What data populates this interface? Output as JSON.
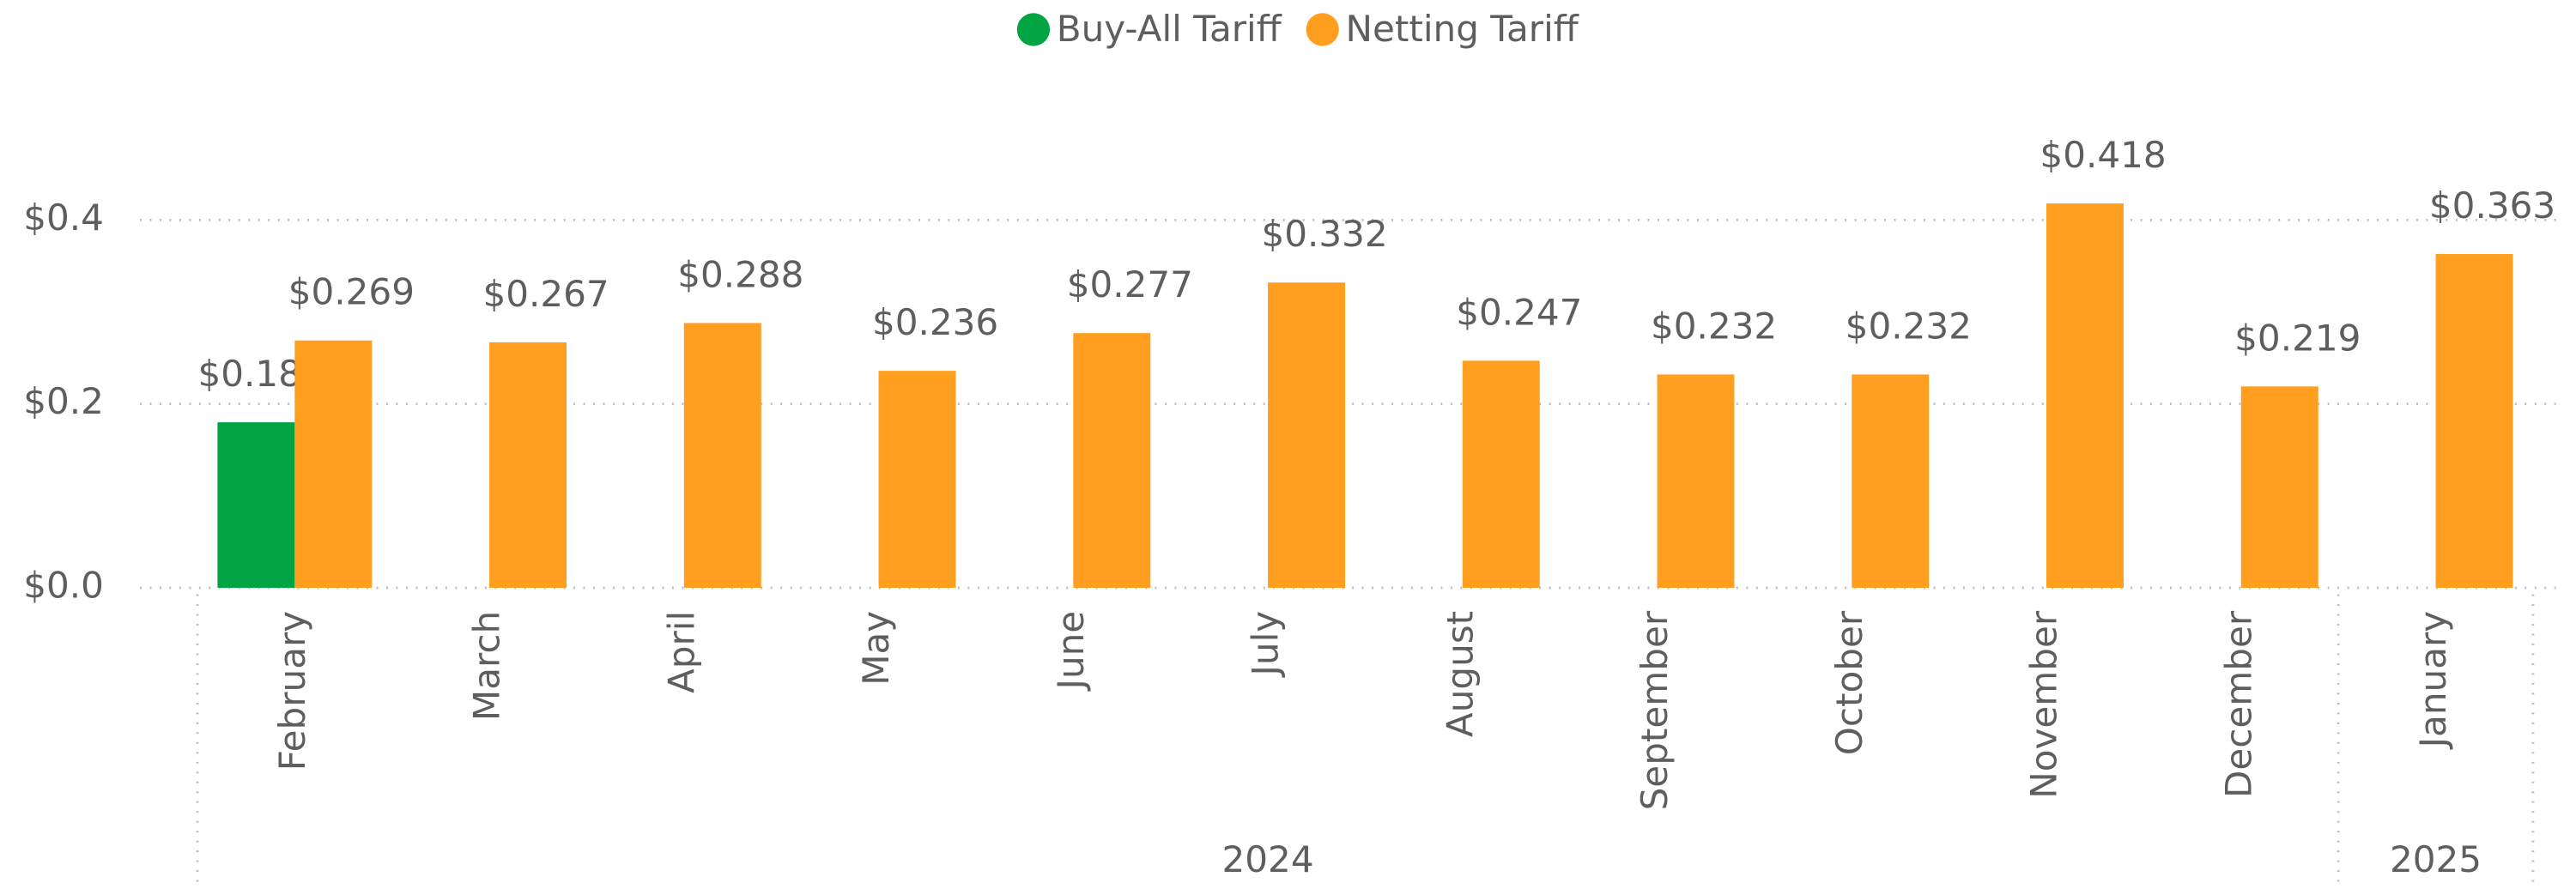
{
  "chart_data": {
    "type": "bar",
    "categories": [
      "February",
      "March",
      "April",
      "May",
      "June",
      "July",
      "August",
      "September",
      "October",
      "November",
      "December",
      "January"
    ],
    "category_groups": [
      {
        "label": "2024",
        "count": 11
      },
      {
        "label": "2025",
        "count": 1
      }
    ],
    "series": [
      {
        "name": "Buy-All Tariff",
        "color": "#00a443",
        "values": [
          0.18,
          null,
          null,
          null,
          null,
          null,
          null,
          null,
          null,
          null,
          null,
          null
        ],
        "value_labels": [
          "$0.180",
          null,
          null,
          null,
          null,
          null,
          null,
          null,
          null,
          null,
          null,
          null
        ]
      },
      {
        "name": "Netting Tariff",
        "color": "#ff9e1f",
        "values": [
          0.269,
          0.267,
          0.288,
          0.236,
          0.277,
          0.332,
          0.247,
          0.232,
          0.232,
          0.418,
          0.219,
          0.363
        ],
        "value_labels": [
          "$0.269",
          "$0.267",
          "$0.288",
          "$0.236",
          "$0.277",
          "$0.332",
          "$0.247",
          "$0.232",
          "$0.232",
          "$0.418",
          "$0.219",
          "$0.363"
        ]
      }
    ],
    "ylim": [
      0,
      0.45
    ],
    "yticks": [
      {
        "value": 0,
        "label": "$0.0"
      },
      {
        "value": 0.2,
        "label": "$0.2"
      },
      {
        "value": 0.4,
        "label": "$0.4"
      }
    ],
    "grid": true,
    "legend": "top"
  }
}
